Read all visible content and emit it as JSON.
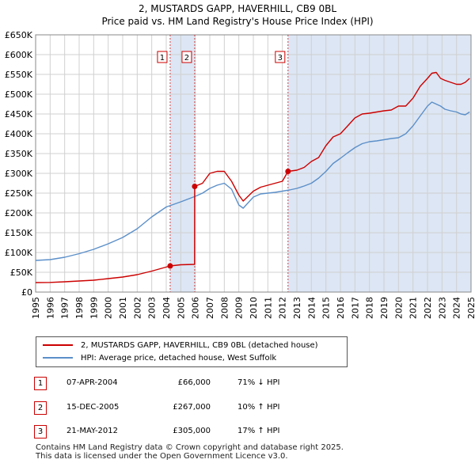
{
  "chart_data": {
    "type": "line",
    "title": "2, MUSTARDS GAPP, HAVERHILL, CB9 0BL",
    "subtitle": "Price paid vs. HM Land Registry's House Price Index (HPI)",
    "xlim": [
      1995,
      2025
    ],
    "ylim": [
      0,
      650000
    ],
    "x_ticks": [
      1995,
      1996,
      1997,
      1998,
      1999,
      2000,
      2001,
      2002,
      2003,
      2004,
      2005,
      2006,
      2007,
      2008,
      2009,
      2010,
      2011,
      2012,
      2013,
      2014,
      2015,
      2016,
      2017,
      2018,
      2019,
      2020,
      2021,
      2022,
      2023,
      2024,
      2025
    ],
    "y_ticks": [
      0,
      50000,
      100000,
      150000,
      200000,
      250000,
      300000,
      350000,
      400000,
      450000,
      500000,
      550000,
      600000,
      650000
    ],
    "y_tick_labels": [
      "£0",
      "£50K",
      "£100K",
      "£150K",
      "£200K",
      "£250K",
      "£300K",
      "£350K",
      "£400K",
      "£450K",
      "£500K",
      "£550K",
      "£600K",
      "£650K"
    ],
    "series": [
      {
        "name": "2, MUSTARDS GAPP, HAVERHILL, CB9 0BL (detached house)",
        "color": "#cc0000",
        "x": [
          1995,
          1996,
          1997,
          1998,
          1999,
          2000,
          2001,
          2002,
          2003,
          2004.27,
          2005,
          2005.95,
          2005.96,
          2006.5,
          2007,
          2007.5,
          2008,
          2008.5,
          2009,
          2009.3,
          2010,
          2010.5,
          2011,
          2011.5,
          2012,
          2012.39,
          2013,
          2013.5,
          2014,
          2014.5,
          2015,
          2015.5,
          2016,
          2016.5,
          2017,
          2017.5,
          2018,
          2018.5,
          2019,
          2019.5,
          2020,
          2020.5,
          2021,
          2021.5,
          2022,
          2022.3,
          2022.6,
          2022.9,
          2023.2,
          2023.6,
          2024,
          2024.3,
          2024.6,
          2024.9
        ],
        "values": [
          24000,
          24500,
          26000,
          28000,
          30000,
          34000,
          38000,
          44000,
          53000,
          66000,
          69000,
          70000,
          267000,
          275000,
          300000,
          305000,
          305000,
          280000,
          245000,
          230000,
          255000,
          265000,
          270000,
          275000,
          280000,
          305000,
          308000,
          315000,
          330000,
          340000,
          370000,
          392000,
          400000,
          420000,
          440000,
          450000,
          452000,
          455000,
          458000,
          460000,
          470000,
          470000,
          490000,
          520000,
          540000,
          553000,
          555000,
          540000,
          535000,
          530000,
          525000,
          525000,
          530000,
          540000
        ]
      },
      {
        "name": "HPI: Average price, detached house, West Suffolk",
        "color": "#5b8fc9",
        "x": [
          1995,
          1996,
          1997,
          1998,
          1999,
          2000,
          2001,
          2002,
          2003,
          2004,
          2005,
          2006,
          2006.5,
          2007,
          2007.5,
          2008,
          2008.5,
          2009,
          2009.3,
          2010,
          2010.5,
          2011,
          2011.5,
          2012,
          2012.5,
          2013,
          2013.5,
          2014,
          2014.5,
          2015,
          2015.5,
          2016,
          2016.5,
          2017,
          2017.5,
          2018,
          2018.5,
          2019,
          2019.5,
          2020,
          2020.5,
          2021,
          2021.5,
          2022,
          2022.3,
          2022.6,
          2022.9,
          2023.2,
          2023.6,
          2024,
          2024.3,
          2024.6,
          2024.9
        ],
        "values": [
          80000,
          82000,
          88000,
          97000,
          108000,
          122000,
          138000,
          160000,
          190000,
          215000,
          228000,
          242000,
          250000,
          262000,
          270000,
          275000,
          260000,
          220000,
          212000,
          240000,
          248000,
          250000,
          252000,
          255000,
          258000,
          262000,
          268000,
          275000,
          288000,
          305000,
          325000,
          338000,
          352000,
          365000,
          375000,
          380000,
          382000,
          385000,
          388000,
          390000,
          400000,
          420000,
          445000,
          470000,
          480000,
          475000,
          470000,
          462000,
          458000,
          455000,
          450000,
          448000,
          455000
        ]
      }
    ],
    "annotations": [
      {
        "label": "1",
        "x": 2004.27,
        "price": 66000
      },
      {
        "label": "2",
        "x": 2005.96,
        "price": 267000
      },
      {
        "label": "3",
        "x": 2012.39,
        "price": 305000
      }
    ]
  },
  "colors": {
    "price_line": "#cc0000",
    "hpi_line": "#5b8fc9",
    "shade": "#dde6f4",
    "grid": "#d0d0d0",
    "marker_line": "#cc4444"
  },
  "legend": {
    "price_label": "2, MUSTARDS GAPP, HAVERHILL, CB9 0BL (detached house)",
    "hpi_label": "HPI: Average price, detached house, West Suffolk"
  },
  "sales": [
    {
      "num": "1",
      "date": "07-APR-2004",
      "price": "£66,000",
      "hpi": "71% ↓ HPI"
    },
    {
      "num": "2",
      "date": "15-DEC-2005",
      "price": "£267,000",
      "hpi": "10% ↑ HPI"
    },
    {
      "num": "3",
      "date": "21-MAY-2012",
      "price": "£305,000",
      "hpi": "17% ↑ HPI"
    }
  ],
  "footer": {
    "line1": "Contains HM Land Registry data © Crown copyright and database right 2025.",
    "line2": "This data is licensed under the Open Government Licence v3.0."
  }
}
